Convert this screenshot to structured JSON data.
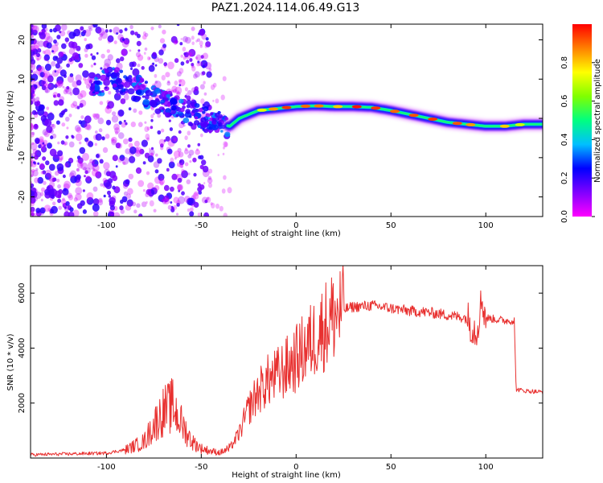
{
  "title": "PAZ1.2024.114.06.49.G13",
  "chart_data": [
    {
      "type": "heatmap",
      "xlabel": "Height of straight line (km)",
      "ylabel": "Frequency (Hz)",
      "xlim": [
        -140,
        130
      ],
      "ylim": [
        -25,
        24
      ],
      "x_ticks": [
        -100,
        -50,
        0,
        50,
        100
      ],
      "y_ticks": [
        -20,
        -10,
        0,
        10,
        20
      ],
      "colorbar": {
        "label": "Normalized spectral amplitude",
        "range": [
          0,
          1
        ],
        "ticks": [
          0.0,
          0.2,
          0.4,
          0.6,
          0.8
        ],
        "colormap": [
          "#ff00ff",
          "#8000ff",
          "#0000ff",
          "#00bfff",
          "#00ff80",
          "#80ff00",
          "#ffff00",
          "#ff8000",
          "#ff0000"
        ]
      },
      "ridge": {
        "x": [
          -105,
          -95,
          -85,
          -75,
          -65,
          -55,
          -45,
          -35,
          -30,
          -20,
          -10,
          0,
          10,
          20,
          30,
          40,
          50,
          60,
          70,
          80,
          90,
          100,
          110,
          120,
          130
        ],
        "frequency": [
          9,
          10,
          8,
          5,
          3,
          1,
          -1,
          -2,
          0,
          2,
          2.5,
          3,
          3.2,
          3,
          3,
          2.8,
          2,
          1,
          0,
          -1,
          -1.5,
          -2,
          -2,
          -1.5,
          -1.5
        ]
      }
    },
    {
      "type": "line",
      "xlabel": "Height of straight line (km)",
      "ylabel": "SNR (10 * v/v)",
      "xlim": [
        -140,
        130
      ],
      "ylim": [
        0,
        7000
      ],
      "x_ticks": [
        -100,
        -50,
        0,
        50,
        100
      ],
      "y_ticks": [
        2000,
        4000,
        6000
      ],
      "series": [
        {
          "color": "#e8302f",
          "x": [
            -140,
            -120,
            -100,
            -90,
            -80,
            -75,
            -70,
            -65,
            -60,
            -55,
            -50,
            -45,
            -40,
            -35,
            -30,
            -25,
            -20,
            -15,
            -10,
            -5,
            0,
            5,
            10,
            15,
            20,
            25,
            30,
            40,
            50,
            60,
            70,
            80,
            90,
            95,
            98,
            100,
            105,
            110,
            115,
            116,
            120,
            130
          ],
          "values": [
            120,
            150,
            180,
            300,
            600,
            1200,
            1700,
            1900,
            1200,
            600,
            350,
            250,
            200,
            350,
            900,
            1800,
            2400,
            2800,
            3000,
            3300,
            3600,
            4000,
            4400,
            4800,
            5200,
            5400,
            5500,
            5550,
            5450,
            5350,
            5300,
            5200,
            5100,
            4600,
            5800,
            5100,
            5050,
            5000,
            5000,
            2500,
            2450,
            2400
          ]
        }
      ]
    }
  ]
}
